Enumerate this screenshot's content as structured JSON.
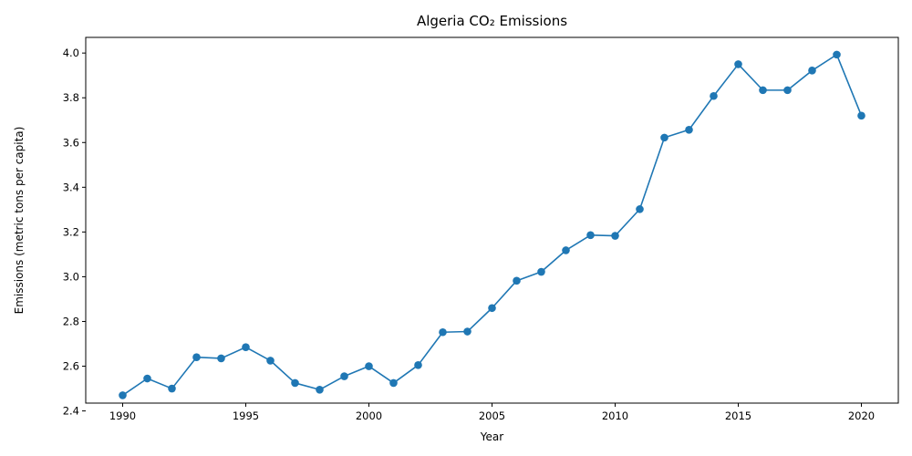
{
  "chart_data": {
    "type": "line",
    "title": "Algeria CO₂ Emissions",
    "xlabel": "Year",
    "ylabel": "Emissions (metric tons per capita)",
    "xlim": [
      1988.5,
      2021.5
    ],
    "ylim": [
      2.435,
      4.07
    ],
    "xticks": [
      1990,
      1995,
      2000,
      2005,
      2010,
      2015,
      2020
    ],
    "yticks": [
      2.4,
      2.6,
      2.8,
      3.0,
      3.2,
      3.4,
      3.6,
      3.8,
      4.0
    ],
    "ytick_labels": [
      "2.4",
      "2.6",
      "2.8",
      "3.0",
      "3.2",
      "3.4",
      "3.6",
      "3.8",
      "4.0"
    ],
    "grid": false,
    "line_color": "#1f77b4",
    "marker": "circle",
    "series": [
      {
        "x": [
          1990,
          1991,
          1992,
          1993,
          1994,
          1995,
          1996,
          1997,
          1998,
          1999,
          2000,
          2001,
          2002,
          2003,
          2004,
          2005,
          2006,
          2007,
          2008,
          2009,
          2010,
          2011,
          2012,
          2013,
          2014,
          2015,
          2016,
          2017,
          2018,
          2019,
          2020
        ],
        "values": [
          2.47,
          2.545,
          2.5,
          2.64,
          2.635,
          2.685,
          2.625,
          2.525,
          2.495,
          2.555,
          2.6,
          2.525,
          2.605,
          2.752,
          2.755,
          2.86,
          2.982,
          3.022,
          3.118,
          3.186,
          3.183,
          3.302,
          3.622,
          3.657,
          3.808,
          3.95,
          3.834,
          3.834,
          3.922,
          3.993,
          3.72
        ]
      }
    ]
  }
}
